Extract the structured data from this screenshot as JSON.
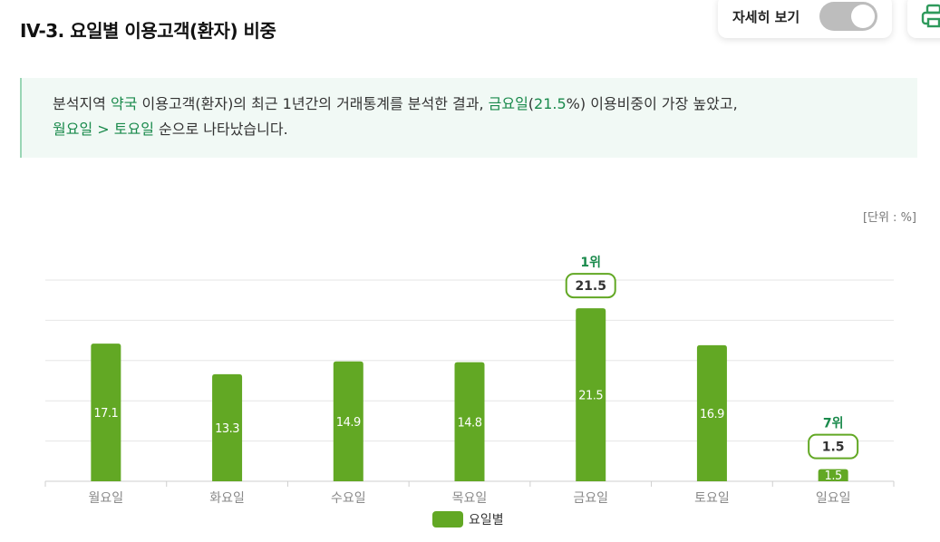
{
  "header": {
    "title": "IV-3. 요일별 이용고객(환자) 비중",
    "detail_toggle_label": "자세히 보기"
  },
  "summary": {
    "p1": "분석지역 ",
    "hl1": "약국",
    "p2": " 이용고객(환자)의 최근 1년간의 거래통계를 분석한 결과, ",
    "hl2": "금요일",
    "p3": "(",
    "hl3": "21.5",
    "p4": "%) 이용비중이 가장 높았고,",
    "hl4": "월요일",
    "p5": " > ",
    "hl5": "토요일",
    "p6": " 순으로 나타났습니다."
  },
  "unit_label": "[단위 : %]",
  "colors": {
    "bar": "#62a824",
    "accent": "#1a8a4c",
    "grid": "#e6e6e6"
  },
  "chart_data": {
    "type": "bar",
    "categories": [
      "월요일",
      "화요일",
      "수요일",
      "목요일",
      "금요일",
      "토요일",
      "일요일"
    ],
    "series": [
      {
        "name": "요일별",
        "values": [
          17.1,
          13.3,
          14.9,
          14.8,
          21.5,
          16.9,
          1.5
        ]
      }
    ],
    "value_labels": [
      "17.1",
      "13.3",
      "14.9",
      "14.8",
      "21.5",
      "16.9",
      "1.5"
    ],
    "ylim": [
      0,
      25
    ],
    "grid": true,
    "legend_position": "bottom",
    "annotations": [
      {
        "category": "금요일",
        "rank": "1위",
        "value": "21.5"
      },
      {
        "category": "일요일",
        "rank": "7위",
        "value": "1.5"
      }
    ]
  }
}
